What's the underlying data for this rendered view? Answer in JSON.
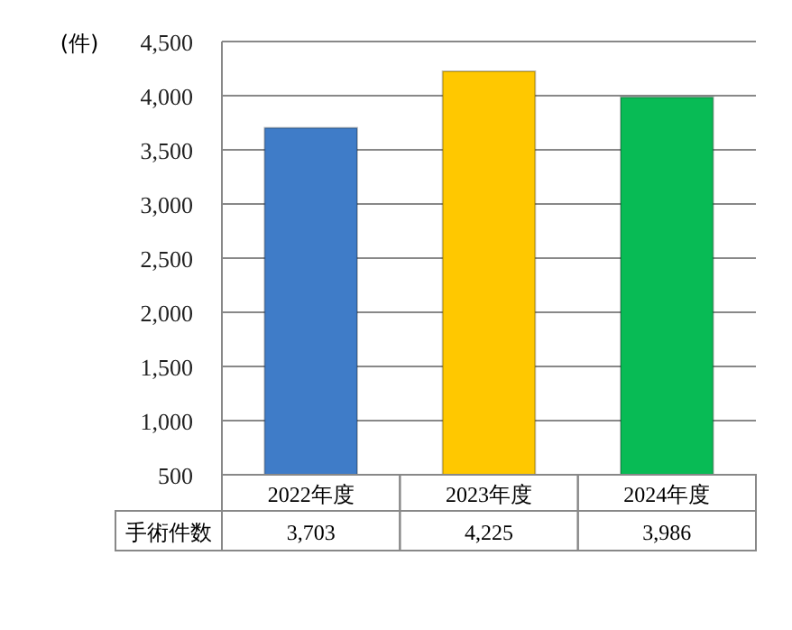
{
  "chart_data": {
    "type": "bar",
    "ylabel": "(件)",
    "categories": [
      "2022年度",
      "2023年度",
      "2024年度"
    ],
    "series": [
      {
        "name": "手術件数",
        "colors": [
          "#3f7cc8",
          "#ffc800",
          "#08bb55"
        ],
        "values": [
          3703,
          4225,
          3986
        ],
        "value_labels": [
          "3,703",
          "4,225",
          "3,986"
        ]
      }
    ],
    "ylim": [
      500,
      4500
    ],
    "yticks": [
      {
        "value": 500,
        "label": "500"
      },
      {
        "value": 1000,
        "label": "1,000"
      },
      {
        "value": 1500,
        "label": "1,500"
      },
      {
        "value": 2000,
        "label": "2,000"
      },
      {
        "value": 2500,
        "label": "2,500"
      },
      {
        "value": 3000,
        "label": "3,000"
      },
      {
        "value": 3500,
        "label": "3,500"
      },
      {
        "value": 4000,
        "label": "4,000"
      },
      {
        "value": 4500,
        "label": "4,500"
      }
    ],
    "grid": "y"
  }
}
